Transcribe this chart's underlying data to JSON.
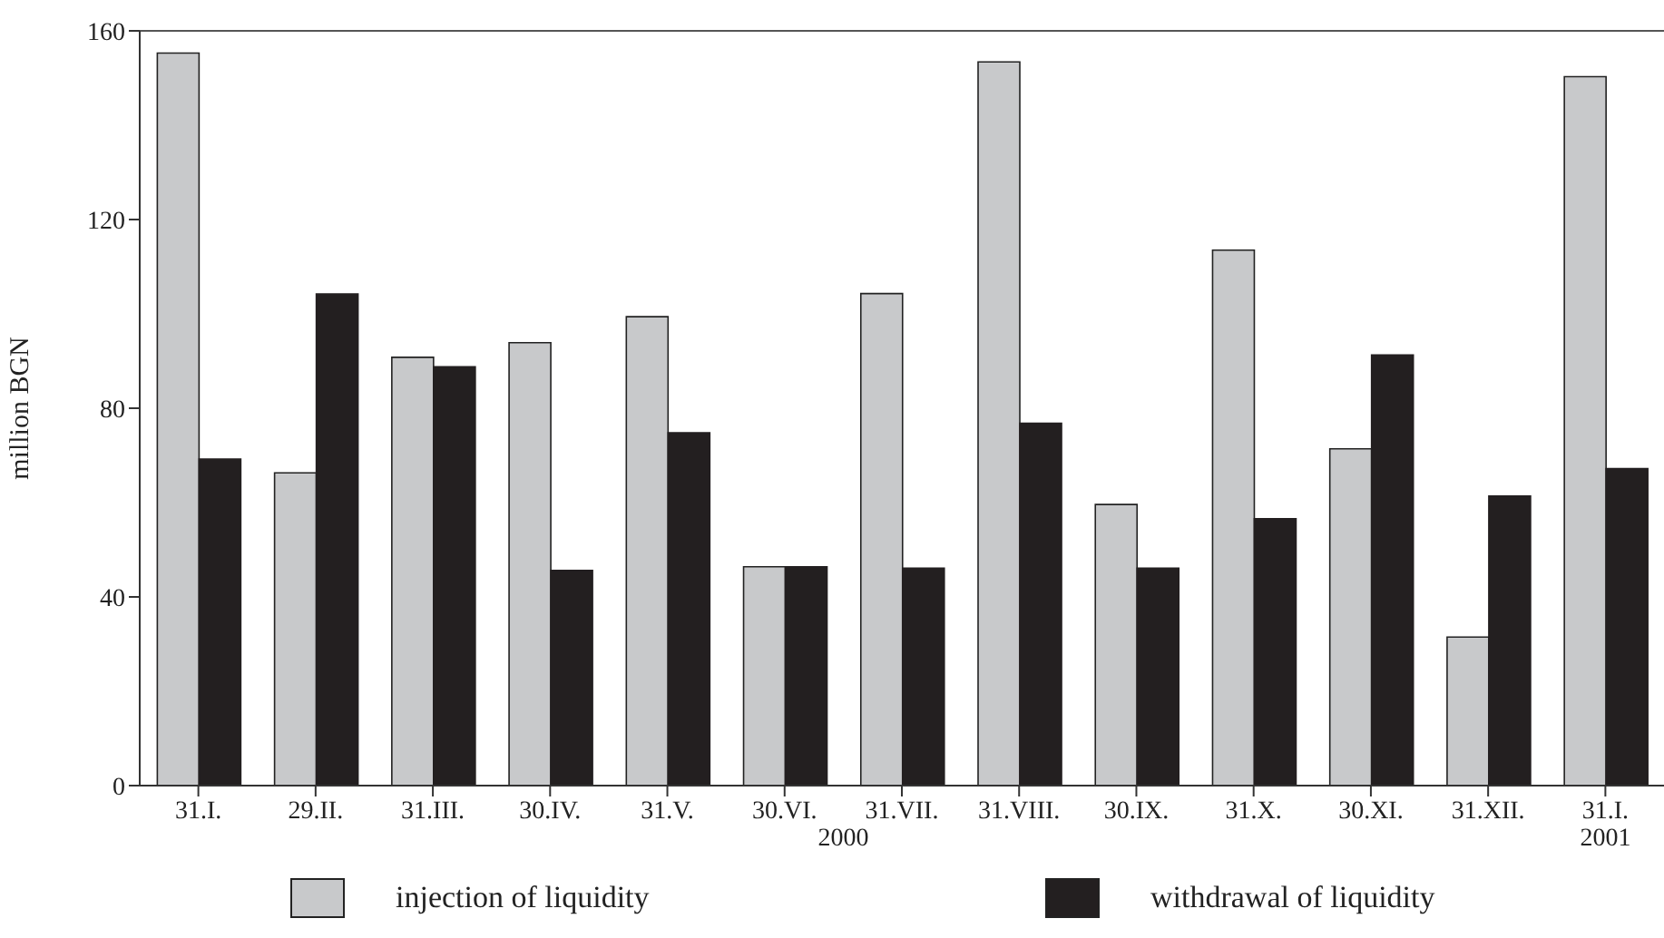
{
  "chart_data": {
    "type": "bar",
    "ylabel": "million BGN",
    "categories": [
      "31.I.",
      "29.II.",
      "31.III.",
      "30.IV.",
      "31.V.",
      "30.VI.",
      "31.VII.",
      "31.VIII.",
      "30.IX.",
      "31.X.",
      "30.XI.",
      "31.XII.",
      "31.I."
    ],
    "series": [
      {
        "name": "injection of liquidity",
        "color": "#c8c9cb",
        "values": [
          155.3,
          66.3,
          90.8,
          93.9,
          99.4,
          46.4,
          104.3,
          153.4,
          59.6,
          113.5,
          71.4,
          31.5,
          150.3
        ]
      },
      {
        "name": "withdrawal of liquidity",
        "color": "#231f20",
        "values": [
          69.2,
          104.2,
          88.8,
          45.6,
          74.8,
          46.4,
          46.1,
          76.8,
          46.1,
          56.6,
          91.3,
          61.4,
          67.2
        ]
      }
    ],
    "ylim": [
      0,
      160
    ],
    "yticks": [
      0,
      40,
      80,
      120,
      160
    ],
    "legend": "bottom",
    "annotations": [
      "2000",
      "2001"
    ]
  }
}
